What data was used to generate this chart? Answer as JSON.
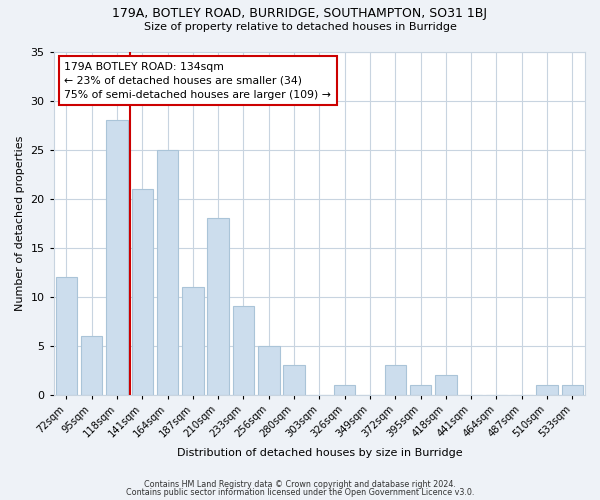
{
  "title1": "179A, BOTLEY ROAD, BURRIDGE, SOUTHAMPTON, SO31 1BJ",
  "title2": "Size of property relative to detached houses in Burridge",
  "xlabel": "Distribution of detached houses by size in Burridge",
  "ylabel": "Number of detached properties",
  "bar_labels": [
    "72sqm",
    "95sqm",
    "118sqm",
    "141sqm",
    "164sqm",
    "187sqm",
    "210sqm",
    "233sqm",
    "256sqm",
    "280sqm",
    "303sqm",
    "326sqm",
    "349sqm",
    "372sqm",
    "395sqm",
    "418sqm",
    "441sqm",
    "464sqm",
    "487sqm",
    "510sqm",
    "533sqm"
  ],
  "bar_values": [
    12,
    6,
    28,
    21,
    25,
    11,
    18,
    9,
    5,
    3,
    0,
    1,
    0,
    3,
    1,
    2,
    0,
    0,
    0,
    1,
    1
  ],
  "bar_color": "#ccdded",
  "bar_edge_color": "#aac4d8",
  "vline_color": "#cc0000",
  "annotation_line1": "179A BOTLEY ROAD: 134sqm",
  "annotation_line2": "← 23% of detached houses are smaller (34)",
  "annotation_line3": "75% of semi-detached houses are larger (109) →",
  "annotation_box_edgecolor": "#cc0000",
  "annotation_box_facecolor": "#ffffff",
  "ylim": [
    0,
    35
  ],
  "yticks": [
    0,
    5,
    10,
    15,
    20,
    25,
    30,
    35
  ],
  "footer1": "Contains HM Land Registry data © Crown copyright and database right 2024.",
  "footer2": "Contains public sector information licensed under the Open Government Licence v3.0.",
  "bg_color": "#eef2f7",
  "plot_bg_color": "#ffffff",
  "grid_color": "#c8d4e0"
}
